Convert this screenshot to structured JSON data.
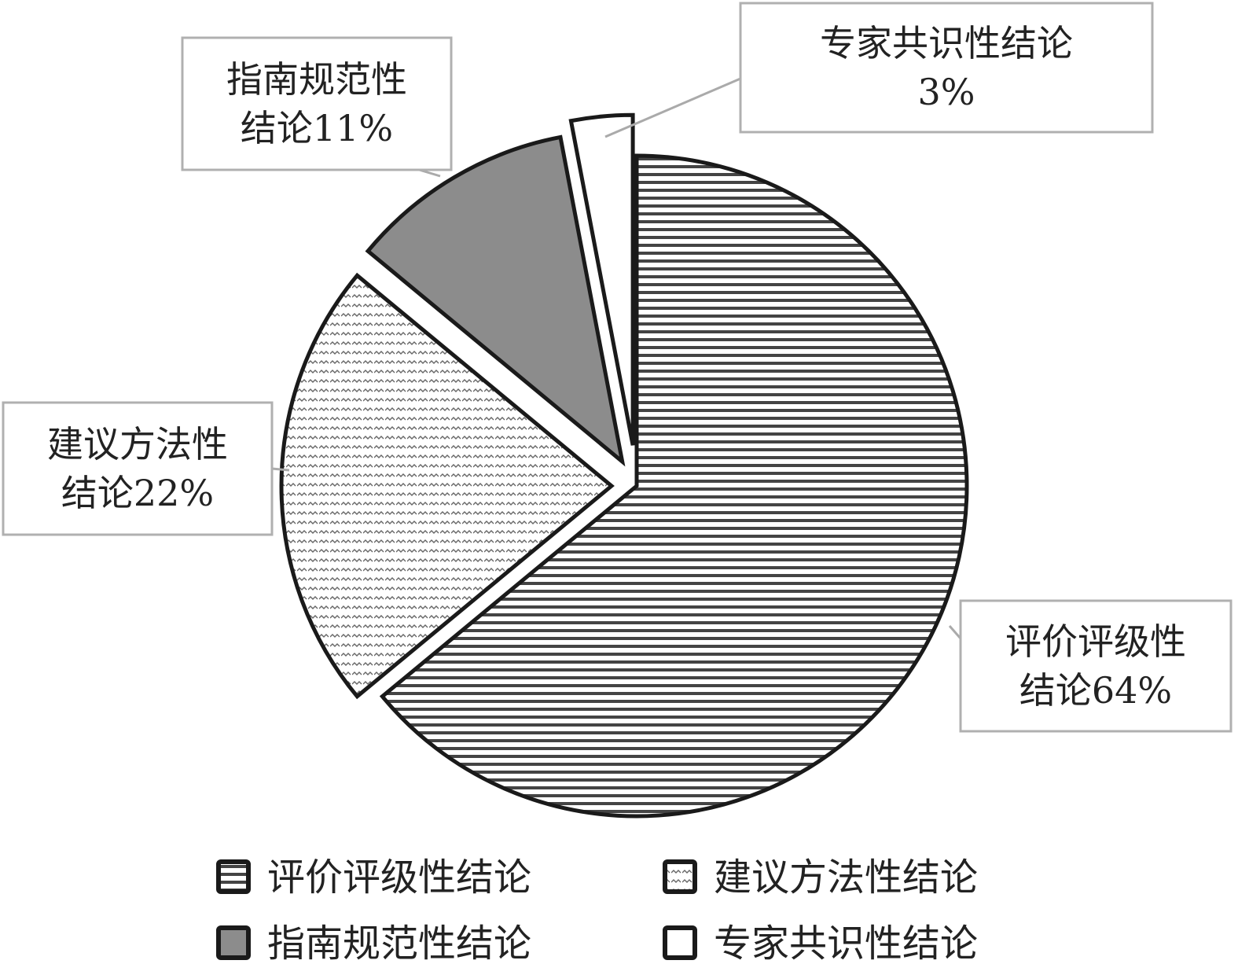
{
  "chart_data": {
    "type": "pie",
    "title": "",
    "start_angle_deg": 0,
    "direction": "clockwise",
    "slices": [
      {
        "name": "评价评级性结论",
        "value": 64,
        "label_lines": [
          "评价评级性",
          "结论64%"
        ],
        "pattern": "horizontal-stripes",
        "exploded": false
      },
      {
        "name": "建议方法性结论",
        "value": 22,
        "label_lines": [
          "建议方法性",
          "结论22%"
        ],
        "pattern": "dotted-hatch",
        "exploded": true
      },
      {
        "name": "指南规范性结论",
        "value": 11,
        "label_lines": [
          "指南规范性",
          "结论11%"
        ],
        "pattern": "solid-gray",
        "exploded": true
      },
      {
        "name": "专家共识性结论",
        "value": 3,
        "label_lines": [
          "专家共识性结论",
          "3%"
        ],
        "pattern": "solid-white",
        "exploded": true
      }
    ],
    "legend": {
      "placement": "bottom",
      "columns": 2,
      "order": [
        "评价评级性结论",
        "建议方法性结论",
        "指南规范性结论",
        "专家共识性结论"
      ]
    },
    "colors": {
      "outline": "#1a1a1a",
      "stripe": "#444444",
      "gray_fill": "#8c8c8c",
      "white_fill": "#ffffff",
      "label_box_border": "#b0b0b0",
      "leader_line": "#aaaaaa"
    }
  }
}
